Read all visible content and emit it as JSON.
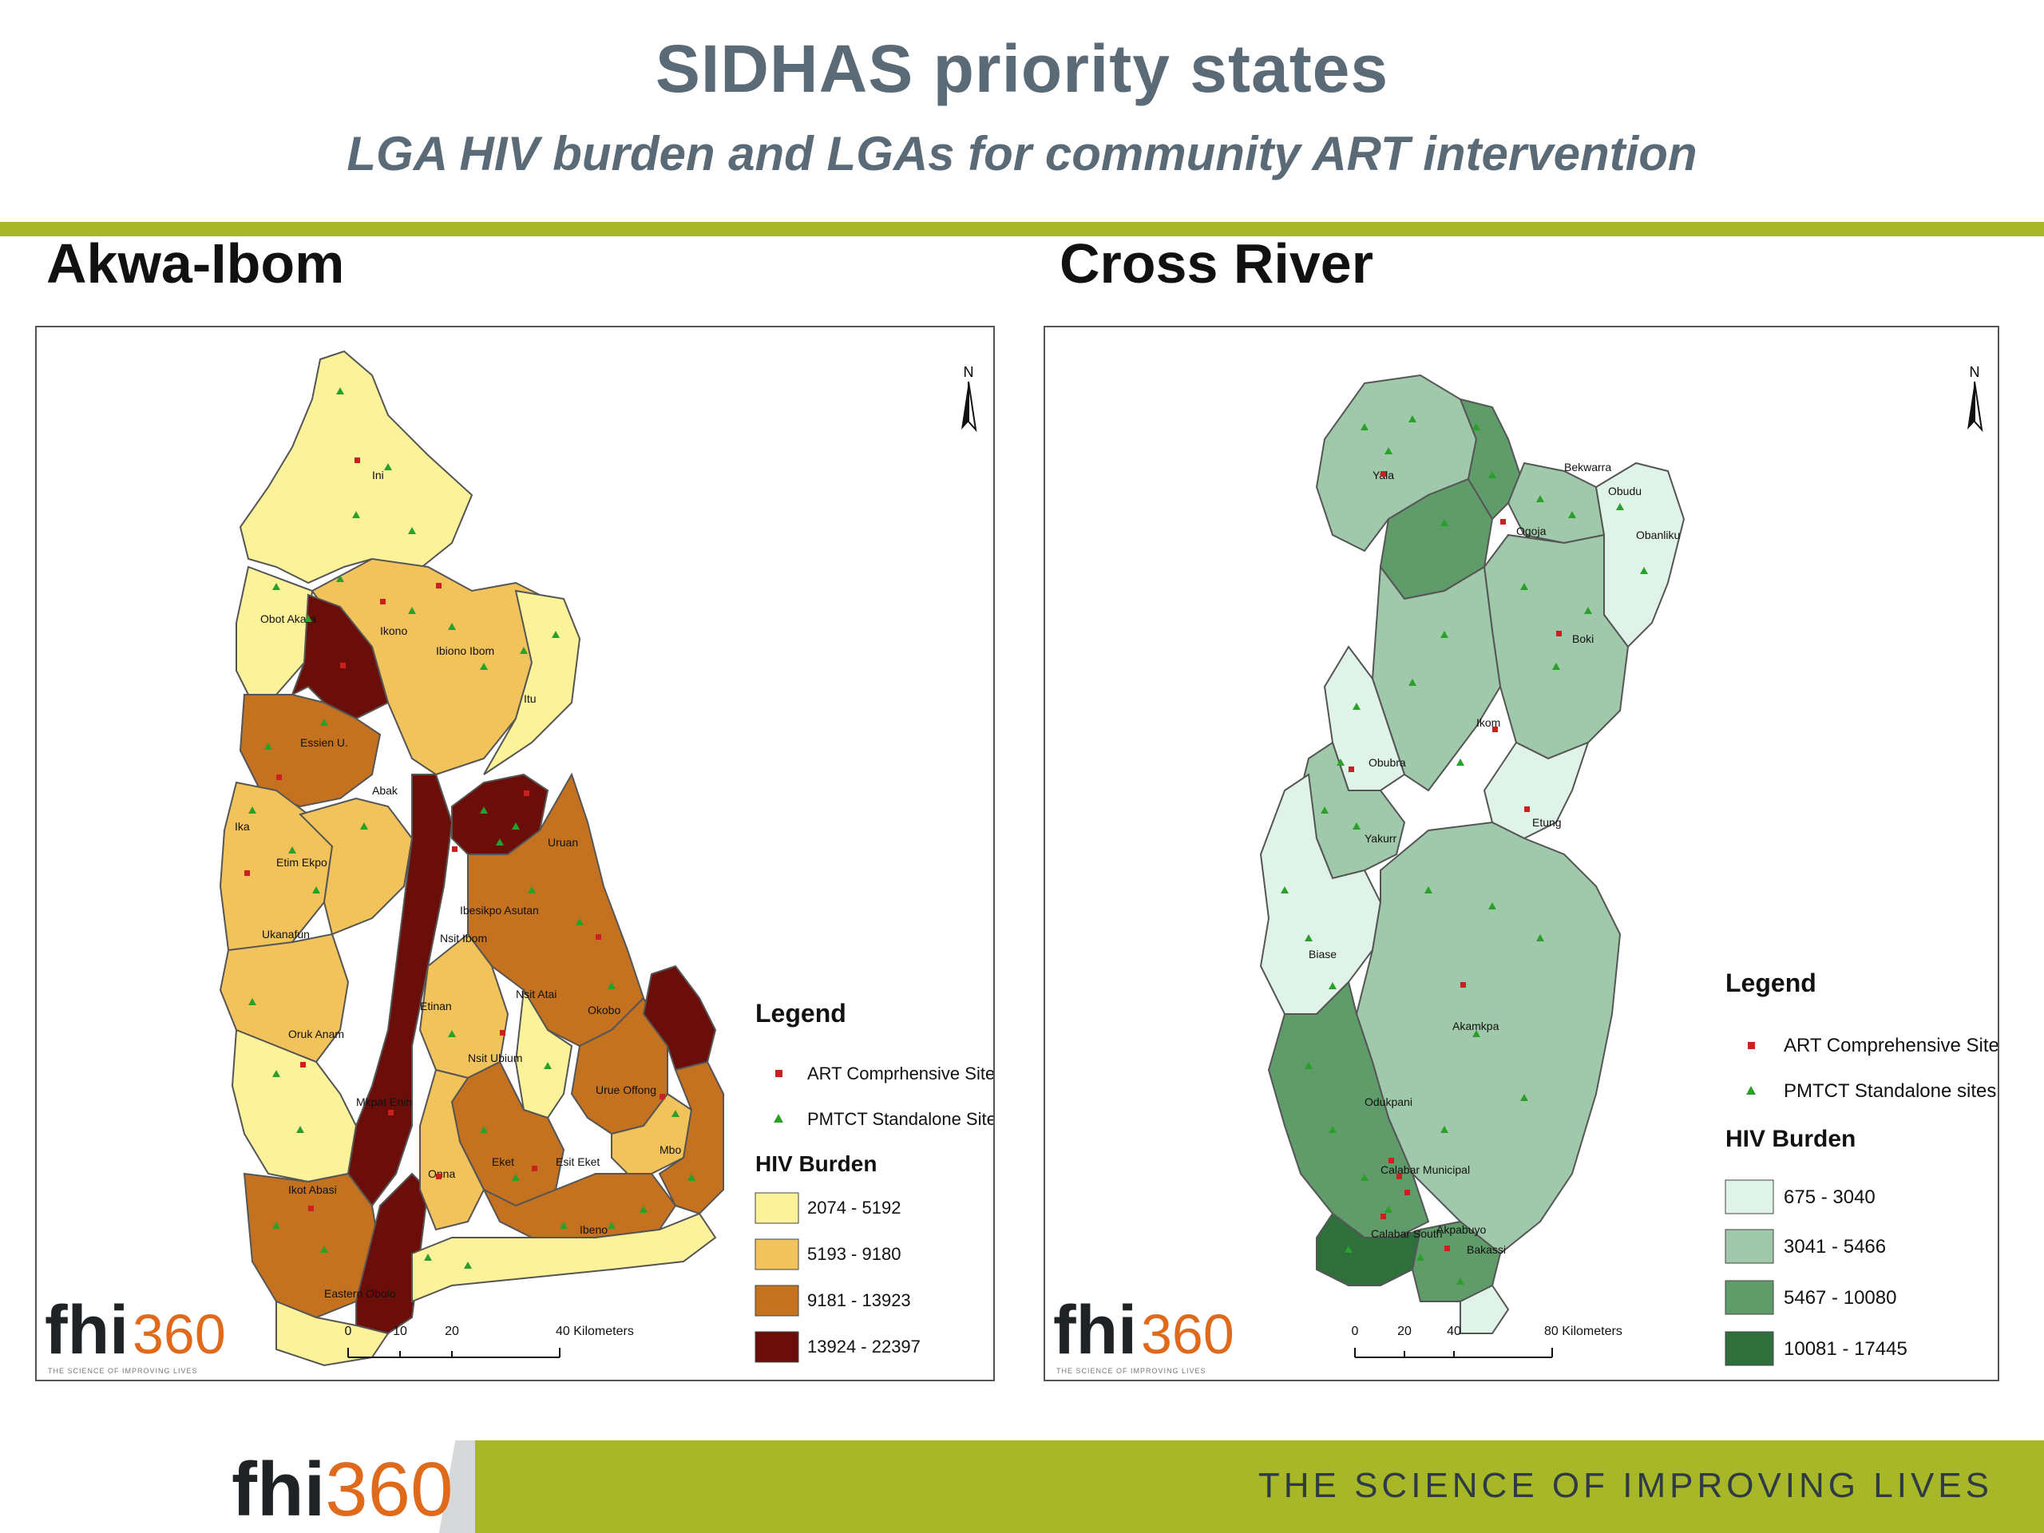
{
  "header": {
    "title": "SIDHAS priority states",
    "subtitle": "LGA HIV burden and LGAs for community ART intervention"
  },
  "maps": {
    "akwa": {
      "state_title": "Akwa-Ibom",
      "north_label": "N",
      "lgas": [
        "Ini",
        "Obot Akara",
        "Ikono",
        "Ibiono Ibom",
        "Itu",
        "Essien U.",
        "Abak",
        "Ika",
        "Etim Ekpo",
        "Uruan",
        "Ukanafun",
        "Ibesikpo Asutan",
        "Nsit Ibom",
        "Nsit Atai",
        "Oruk Anam",
        "Etinan",
        "Okobo",
        "Urue Offong",
        "Nsit Ubium",
        "Mkpat Enin",
        "Ikot Abasi",
        "Onna",
        "Eket",
        "Esit Eket",
        "Mbo",
        "Ibeno",
        "Eastern Obolo"
      ],
      "legend": {
        "title": "Legend",
        "art_label": "ART Comprhensive Sites",
        "pmtct_label": "PMTCT Standalone Sites",
        "burden_title": "HIV Burden",
        "classes": [
          {
            "label": "2074 - 5192",
            "color": "#fbf29a"
          },
          {
            "label": "5193 - 9180",
            "color": "#f2c35a"
          },
          {
            "label": "9181 - 13923",
            "color": "#c4721f"
          },
          {
            "label": "13924 - 22397",
            "color": "#6b0d08"
          }
        ]
      },
      "scale": {
        "ticks": [
          "0",
          "10",
          "20",
          "40 Kilometers"
        ]
      },
      "logo": {
        "fhi": "fhi",
        "num": "360",
        "tagline": "THE SCIENCE OF IMPROVING LIVES"
      }
    },
    "cross": {
      "state_title": "Cross River",
      "north_label": "N",
      "lgas": [
        "Yala",
        "Bekwarra",
        "Ogoja",
        "Obudu",
        "Obanliku",
        "Boki",
        "Ikom",
        "Obubra",
        "Etung",
        "Yakurr",
        "Biase",
        "Akamkpa",
        "Odukpani",
        "Calabar Municipal",
        "Calabar South",
        "Akpabuyo",
        "Bakassi"
      ],
      "legend": {
        "title": "Legend",
        "art_label": "ART Comprehensive Sites",
        "pmtct_label": "PMTCT Standalone sites",
        "burden_title": "HIV Burden",
        "classes": [
          {
            "label": "675 - 3040",
            "color": "#dff3e8"
          },
          {
            "label": "3041 - 5466",
            "color": "#9fc9aa"
          },
          {
            "label": "5467 - 10080",
            "color": "#5f9c6a"
          },
          {
            "label": "10081 - 17445",
            "color": "#2f6f3c"
          }
        ]
      },
      "scale": {
        "ticks": [
          "0",
          "20",
          "40",
          "80 Kilometers"
        ]
      },
      "logo": {
        "fhi": "fhi",
        "num": "360",
        "tagline": "THE SCIENCE OF IMPROVING LIVES"
      }
    }
  },
  "footer": {
    "logo_fhi": "fhi",
    "logo_num": "360",
    "tagline": "THE SCIENCE OF IMPROVING LIVES"
  },
  "colors": {
    "accent_bar": "#a8b728",
    "title_text": "#5a6b77",
    "art_marker": "#cc1f1f",
    "pmtct_marker": "#2aa02a"
  }
}
